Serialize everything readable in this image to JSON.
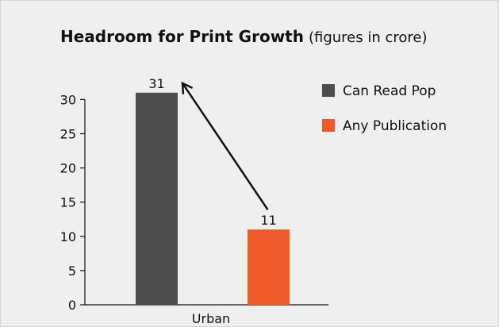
{
  "chart_data": {
    "type": "bar",
    "title": "Headroom for Print Growth",
    "subtitle": "(figures in crore)",
    "categories": [
      "Urban"
    ],
    "series": [
      {
        "name": "Can Read Pop",
        "values": [
          31
        ],
        "color": "#4d4d4d",
        "label": "31"
      },
      {
        "name": "Any Publication",
        "values": [
          11
        ],
        "color": "#f05a28",
        "label": "11"
      }
    ],
    "ylim": [
      0,
      30
    ],
    "yticks": [
      0,
      5,
      10,
      15,
      20,
      25,
      30
    ],
    "xlabel": "",
    "ylabel": "",
    "grid": false,
    "legend_position": "top-right",
    "annotation": "arrow from 11 bar up to 31 bar"
  }
}
